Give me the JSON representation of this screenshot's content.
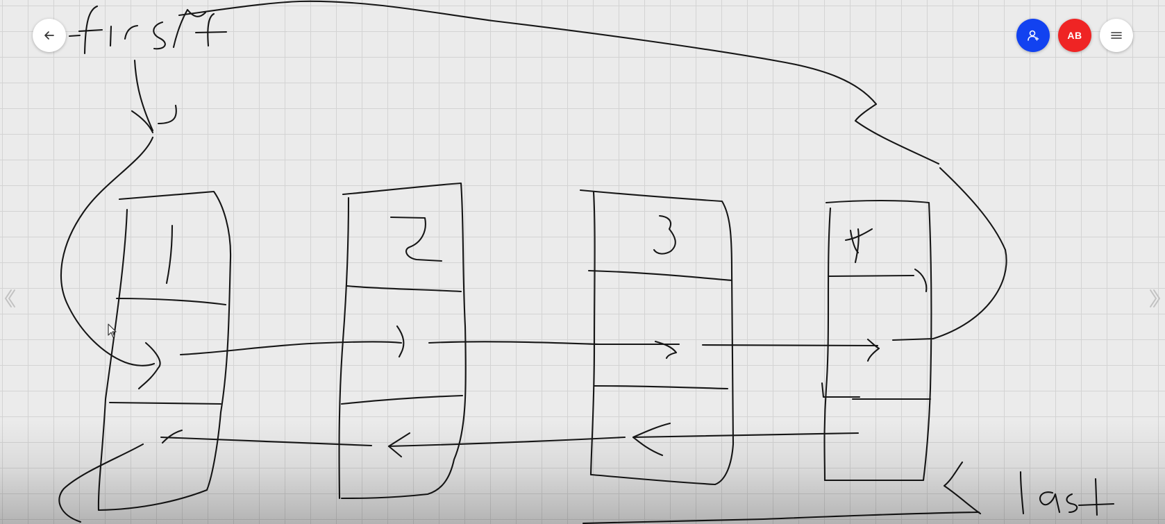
{
  "toolbar": {
    "back_icon": "arrow-left-icon",
    "user_icon": "person-icon",
    "user_color": "#1242f0",
    "avatar_initials": "AB",
    "avatar_color": "#ef2424",
    "menu_icon": "hamburger-menu-icon"
  },
  "navigation": {
    "prev_icon": "chevron-left-icon",
    "next_icon": "chevron-right-icon"
  },
  "board": {
    "background": "#ebebeb",
    "grid_color": "#d3d3d3",
    "ink_color": "#161616",
    "handwritten_labels": [
      "first",
      "last"
    ],
    "node_values": [
      "1",
      "2",
      "3",
      "4"
    ]
  }
}
